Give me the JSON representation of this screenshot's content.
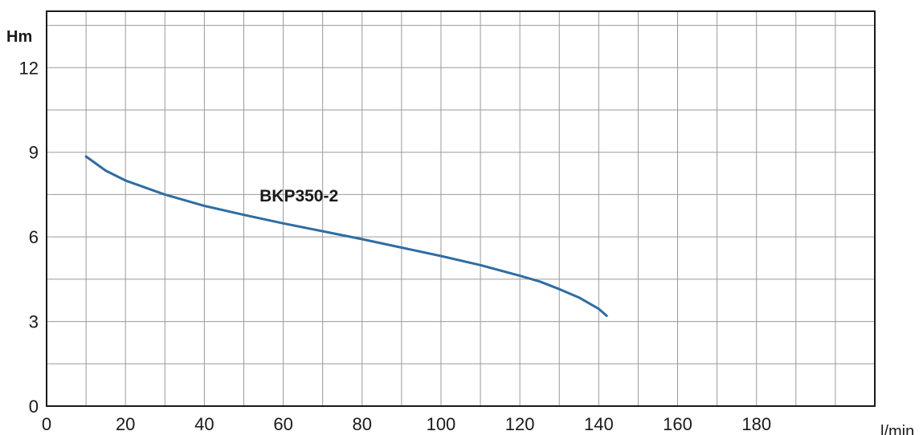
{
  "chart_data": {
    "type": "line",
    "ylabel": "Hm",
    "xlabel": "l/min",
    "xlim": [
      0,
      210
    ],
    "ylim": [
      0,
      14
    ],
    "x_ticks": [
      0,
      20,
      40,
      60,
      80,
      100,
      120,
      140,
      160,
      180
    ],
    "y_ticks": [
      0,
      3,
      6,
      9,
      12
    ],
    "grid": true,
    "series": [
      {
        "name": "BKP350-2",
        "color": "#2e6da4",
        "x": [
          10,
          15,
          20,
          30,
          40,
          50,
          60,
          70,
          80,
          90,
          100,
          110,
          120,
          125,
          130,
          135,
          140,
          142
        ],
        "y": [
          8.85,
          8.35,
          8.0,
          7.5,
          7.1,
          6.78,
          6.48,
          6.2,
          5.92,
          5.62,
          5.32,
          5.0,
          4.62,
          4.42,
          4.15,
          3.85,
          3.45,
          3.2
        ]
      }
    ]
  }
}
